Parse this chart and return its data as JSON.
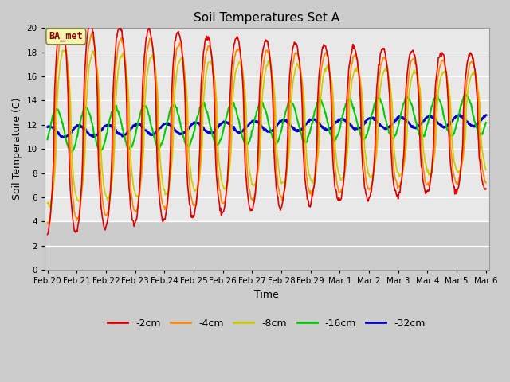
{
  "title": "Soil Temperatures Set A",
  "xlabel": "Time",
  "ylabel": "Soil Temperature (C)",
  "ylim": [
    0,
    20
  ],
  "yticks": [
    0,
    2,
    4,
    6,
    8,
    10,
    12,
    14,
    16,
    18,
    20
  ],
  "plot_bg_upper": "#e8e8e8",
  "plot_bg_lower": "#d0d0d0",
  "fig_bg": "#d0d0d0",
  "annotation_text": "BA_met",
  "annotation_bg": "#f5f5b0",
  "annotation_border": "#888844",
  "annotation_text_color": "#8b0000",
  "colors": {
    "-2cm": "#dd0000",
    "-4cm": "#ff8800",
    "-8cm": "#cccc00",
    "-16cm": "#00cc00",
    "-32cm": "#0000cc"
  },
  "line_widths": {
    "-2cm": 1.2,
    "-4cm": 1.2,
    "-8cm": 1.2,
    "-16cm": 1.5,
    "-32cm": 2.0
  },
  "x_tick_labels": [
    "Feb 20",
    "Feb 21",
    "Feb 22",
    "Feb 23",
    "Feb 24",
    "Feb 25",
    "Feb 26",
    "Feb 27",
    "Feb 28",
    "Feb 29",
    "Mar 1",
    "Mar 2",
    "Mar 3",
    "Mar 4",
    "Mar 5",
    "Mar 6"
  ],
  "n_days": 15,
  "n_points": 720
}
